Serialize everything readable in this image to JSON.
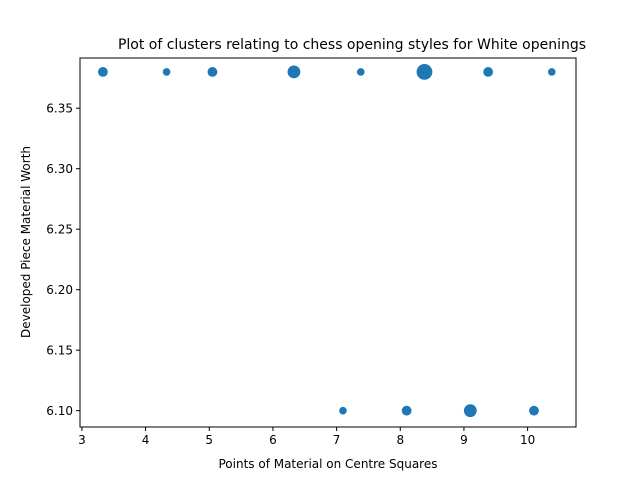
{
  "chart_data": {
    "type": "scatter",
    "title": "Plot of clusters relating to chess opening styles for White openings",
    "xlabel": "Points of Material on Centre Squares",
    "ylabel": "Developed Piece Material Worth",
    "xlim": [
      2.97,
      10.76
    ],
    "ylim": [
      6.0865,
      6.3915
    ],
    "x_ticks": [
      3,
      4,
      5,
      6,
      7,
      8,
      9,
      10
    ],
    "y_ticks": [
      6.1,
      6.15,
      6.2,
      6.25,
      6.3,
      6.35
    ],
    "x_tick_labels": [
      "3",
      "4",
      "5",
      "6",
      "7",
      "8",
      "9",
      "10"
    ],
    "y_tick_labels": [
      "6.10",
      "6.15",
      "6.20",
      "6.25",
      "6.30",
      "6.35"
    ],
    "grid": false,
    "marker_color": "#1f77b4",
    "points": [
      {
        "x": 3.33,
        "y": 6.38,
        "size": 2
      },
      {
        "x": 4.33,
        "y": 6.38,
        "size": 1
      },
      {
        "x": 5.05,
        "y": 6.38,
        "size": 2
      },
      {
        "x": 6.33,
        "y": 6.38,
        "size": 4
      },
      {
        "x": 7.38,
        "y": 6.38,
        "size": 1
      },
      {
        "x": 8.38,
        "y": 6.38,
        "size": 6
      },
      {
        "x": 9.38,
        "y": 6.38,
        "size": 2
      },
      {
        "x": 10.38,
        "y": 6.38,
        "size": 1
      },
      {
        "x": 7.1,
        "y": 6.1,
        "size": 1
      },
      {
        "x": 8.1,
        "y": 6.1,
        "size": 2
      },
      {
        "x": 9.1,
        "y": 6.1,
        "size": 4
      },
      {
        "x": 10.1,
        "y": 6.1,
        "size": 2
      }
    ]
  }
}
